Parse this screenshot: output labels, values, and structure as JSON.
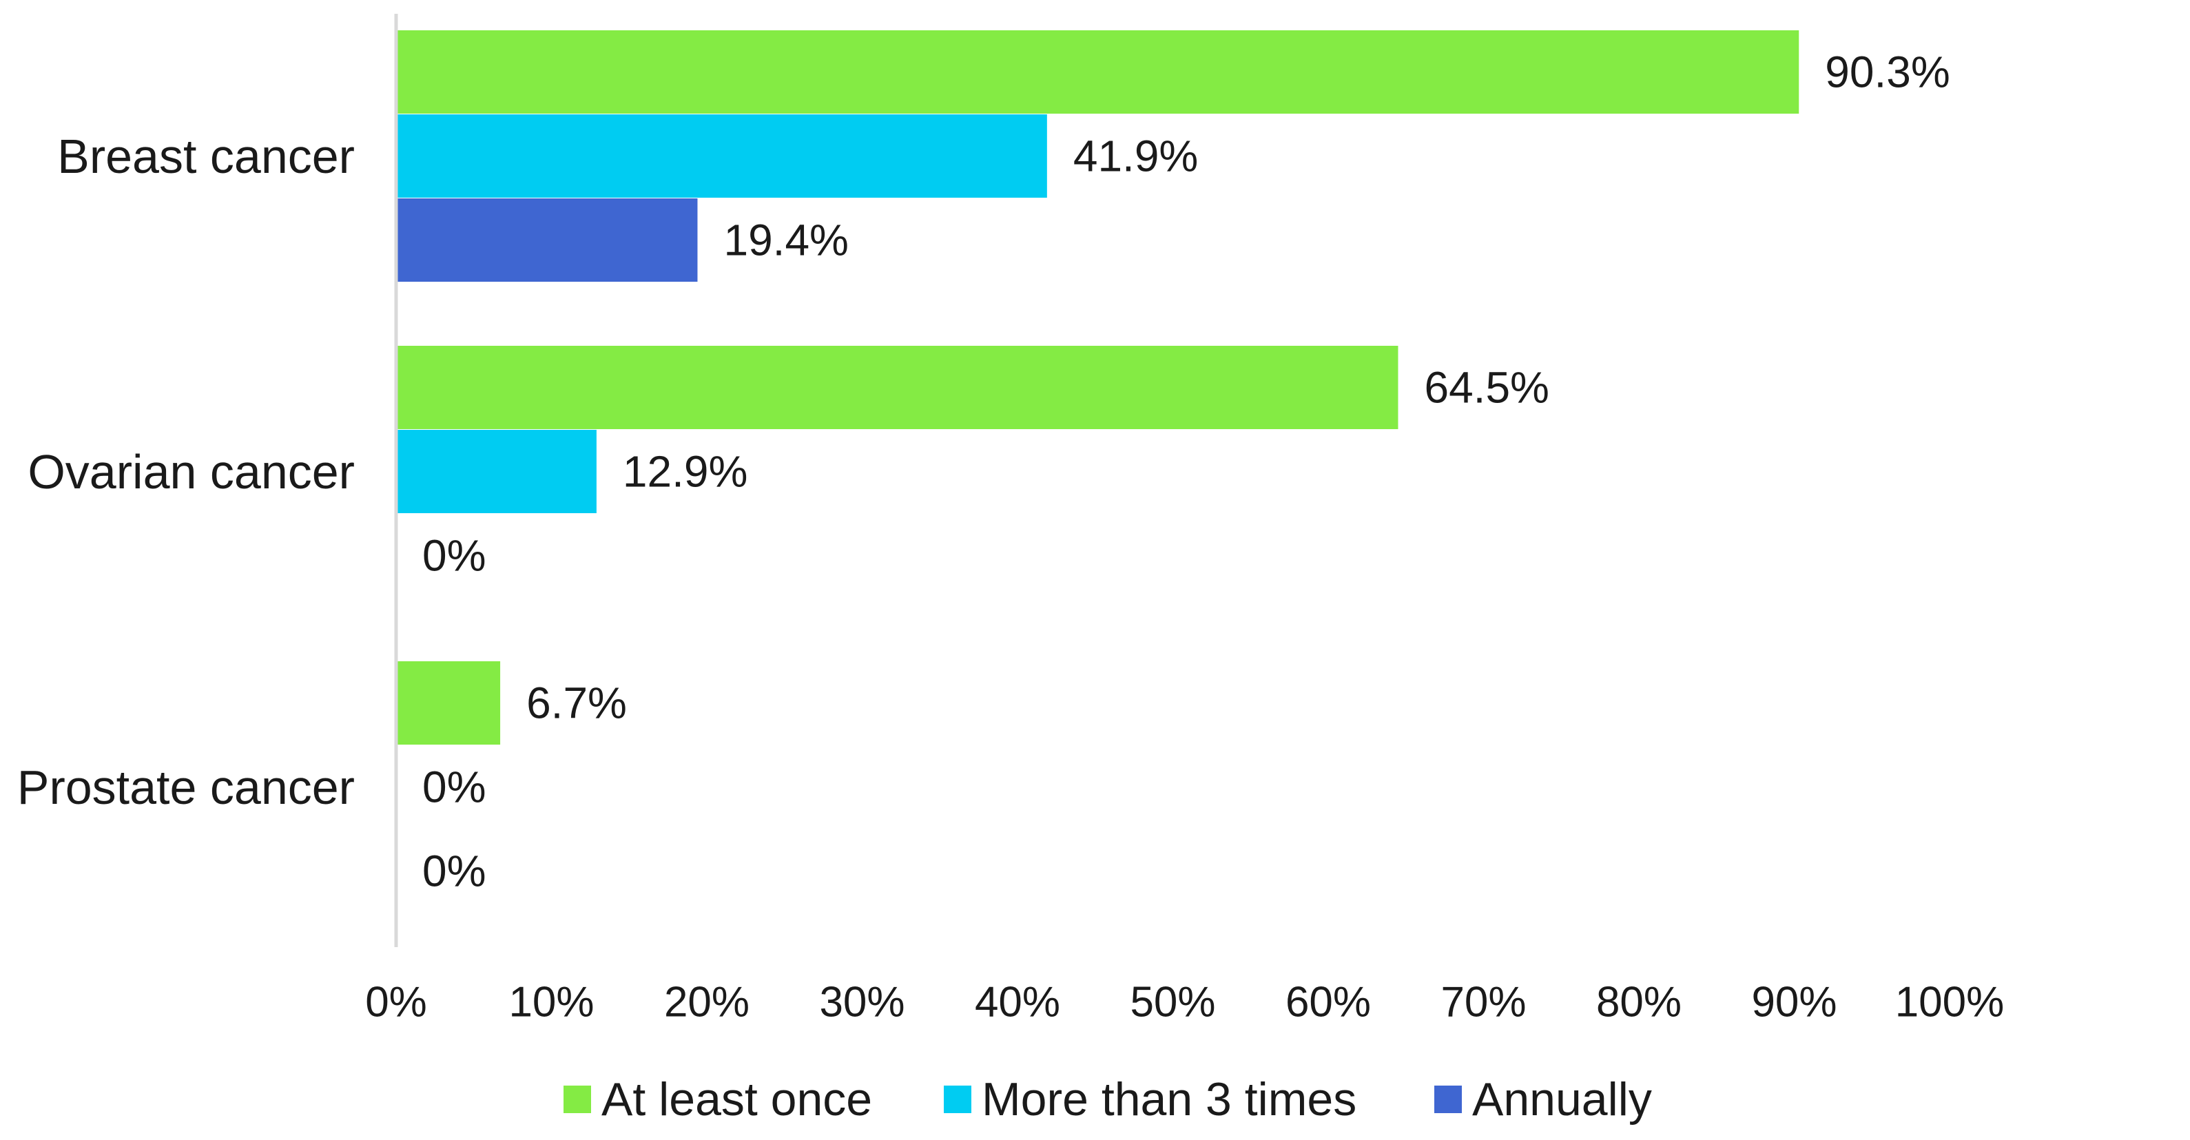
{
  "chart_data": {
    "type": "bar",
    "orientation": "horizontal",
    "categories": [
      "Breast cancer",
      "Ovarian cancer",
      "Prostate cancer"
    ],
    "series": [
      {
        "name": "At least once",
        "color": "#84EB44",
        "values": [
          90.3,
          64.5,
          6.7
        ],
        "labels": [
          "90.3%",
          "64.5%",
          "6.7%"
        ]
      },
      {
        "name": "More than 3 times",
        "color": "#00CCF2",
        "values": [
          41.9,
          12.9,
          0
        ],
        "labels": [
          "41.9%",
          "12.9%",
          "0%"
        ]
      },
      {
        "name": "Annually",
        "color": "#3F66D1",
        "values": [
          19.4,
          0,
          0
        ],
        "labels": [
          "19.4%",
          "0%",
          "0%"
        ]
      }
    ],
    "xlim": [
      0,
      100
    ],
    "x_ticks": [
      "0%",
      "10%",
      "20%",
      "30%",
      "40%",
      "50%",
      "60%",
      "70%",
      "80%",
      "90%",
      "100%"
    ],
    "grid": false,
    "legend_position": "bottom",
    "title": "",
    "xlabel": "",
    "ylabel": ""
  }
}
